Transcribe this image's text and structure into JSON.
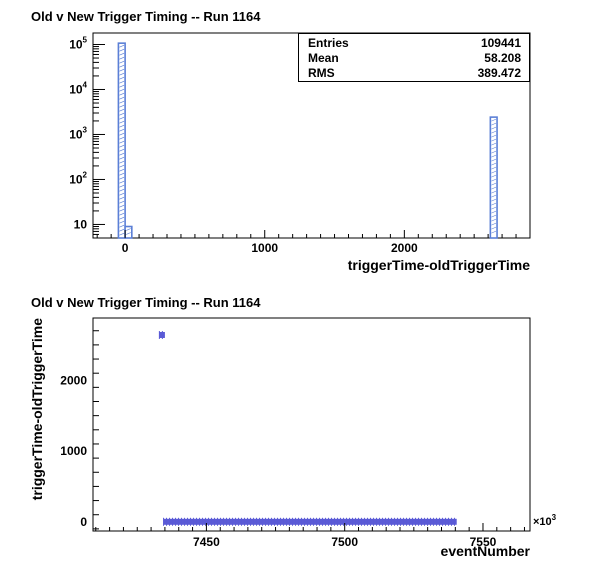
{
  "top_panel": {
    "title": "Old v New Trigger Timing -- Run 1164",
    "stats": [
      {
        "label": "Entries",
        "value": "109441"
      },
      {
        "label": "Mean",
        "value": "58.208"
      },
      {
        "label": "RMS",
        "value": "389.472"
      }
    ]
  },
  "bottom_panel": {
    "title": "Old v New Trigger Timing -- Run 1164"
  },
  "colors": {
    "series": "#5b5bd6",
    "hist_line": "#5b7fd6",
    "axis": "#000000"
  },
  "chart_data": [
    {
      "type": "bar",
      "subtype": "histogram",
      "title": "Old v New Trigger Timing -- Run 1164",
      "xlabel": "triggerTime-oldTriggerTime",
      "ylabel": "",
      "xlim": [
        -230,
        2900
      ],
      "ylim": [
        5,
        180000
      ],
      "log_y": true,
      "x_ticks": [
        0,
        1000,
        2000
      ],
      "x_tick_labels": [
        "0",
        "1000",
        "2000"
      ],
      "y_ticks": [
        10,
        100,
        1000,
        10000,
        100000
      ],
      "y_tick_labels": [
        "10",
        "10",
        "10",
        "10",
        "10"
      ],
      "y_tick_exponents": [
        "",
        "2",
        "3",
        "4",
        "5"
      ],
      "bin_width": 48,
      "bins": [
        {
          "x": -24,
          "count": 107000
        },
        {
          "x": 24,
          "count": 9
        },
        {
          "x": 2640,
          "count": 2430
        }
      ],
      "grid": false,
      "legend": "stats box top-right"
    },
    {
      "type": "scatter",
      "title": "Old v New Trigger Timing -- Run 1164",
      "xlabel": "eventNumber",
      "ylabel": "triggerTime-oldTriggerTime",
      "x_multiplier": "×10",
      "x_multiplier_exp": "3",
      "xlim": [
        7409,
        7567
      ],
      "ylim": [
        -130,
        2880
      ],
      "x_ticks": [
        7450,
        7500,
        7550
      ],
      "x_tick_labels": [
        "7450",
        "7500",
        "7550"
      ],
      "y_ticks": [
        0,
        1000,
        2000
      ],
      "y_tick_labels": [
        "0",
        "1000",
        "2000"
      ],
      "series": [
        {
          "x_start": 7433.0,
          "x_end": 7435.0,
          "y": 2640
        },
        {
          "x_start": 7434.5,
          "x_end": 7540.5,
          "y": 0
        }
      ],
      "grid": false
    }
  ]
}
